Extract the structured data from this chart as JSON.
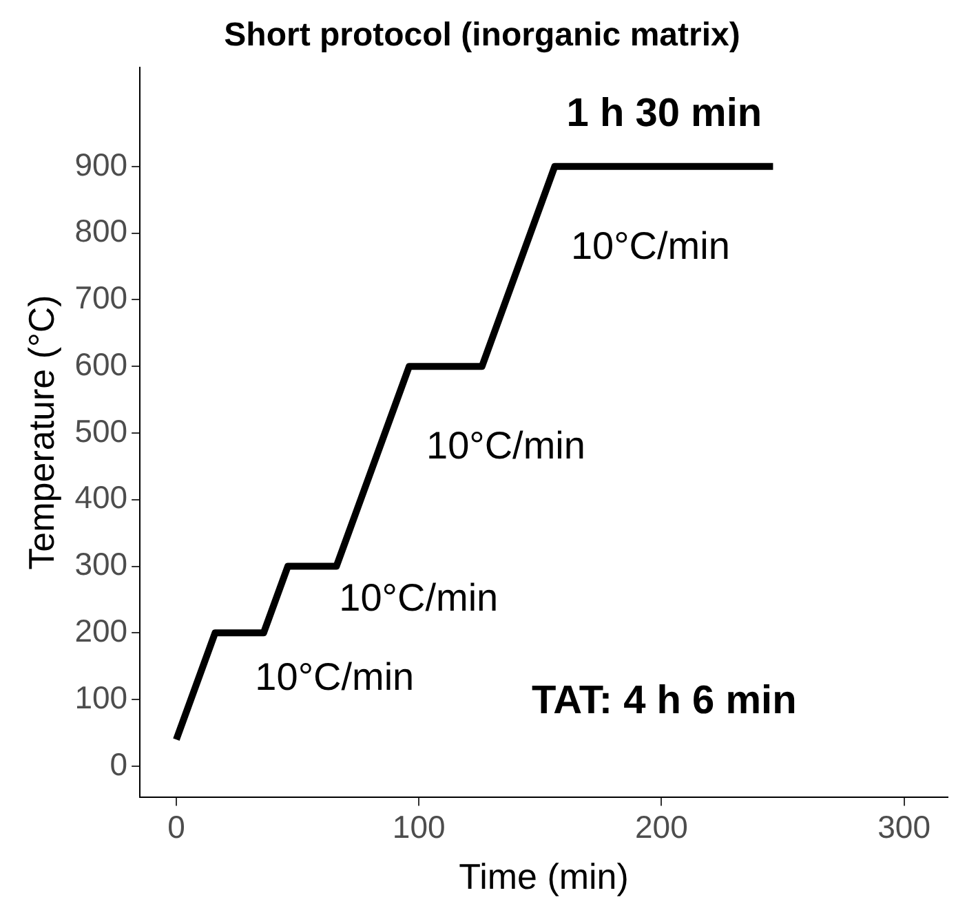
{
  "chart_data": {
    "type": "line",
    "title": "Short protocol (inorganic matrix)",
    "xlabel": "Time (min)",
    "ylabel": "Temperature (°C)",
    "x": [
      0,
      16,
      36,
      46,
      66,
      96,
      126,
      156,
      246
    ],
    "series": [
      {
        "color": "#000000",
        "values": [
          40,
          200,
          200,
          300,
          300,
          600,
          600,
          900,
          900
        ]
      }
    ],
    "xlim": [
      -15,
      318
    ],
    "xticks": [
      0,
      100,
      200,
      300
    ],
    "ylim": [
      -47,
      1049
    ],
    "yticks": [
      0,
      100,
      200,
      300,
      400,
      500,
      600,
      700,
      800,
      900
    ],
    "grid": false,
    "legend": false,
    "marker": "none",
    "line_style": "solid",
    "annotations": [
      "1 h 30 min",
      "10°C/min",
      "10°C/min",
      "10°C/min",
      "10°C/min",
      "TAT: 4 h 6 min"
    ]
  }
}
